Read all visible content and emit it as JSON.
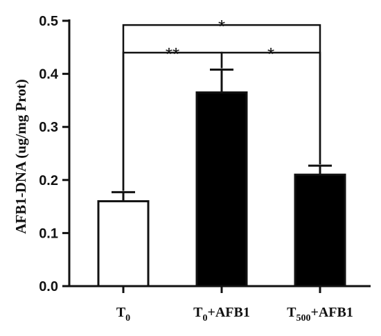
{
  "chart_data": {
    "type": "bar",
    "ylabel": "AFB1-DNA (ug/mg Prot)",
    "ylim": [
      0,
      0.5
    ],
    "yticks": [
      "0.0",
      "0.1",
      "0.2",
      "0.3",
      "0.4",
      "0.5"
    ],
    "categories": [
      {
        "main": "T",
        "sub": "0",
        "rest": ""
      },
      {
        "main": "T",
        "sub": "0",
        "rest": "+AFB1"
      },
      {
        "main": "T",
        "sub": "500",
        "rest": "+AFB1"
      }
    ],
    "values": [
      0.16,
      0.365,
      0.21
    ],
    "errors": [
      0.017,
      0.043,
      0.017
    ],
    "bar_colors": [
      "#ffffff",
      "#000000",
      "#000000"
    ],
    "significance": [
      {
        "from": 0,
        "to": 2,
        "level": 0.492,
        "label": "*"
      },
      {
        "from": 0,
        "to": 1,
        "level": 0.44,
        "label": "**"
      },
      {
        "from": 1,
        "to": 2,
        "level": 0.44,
        "label": "*"
      }
    ]
  }
}
